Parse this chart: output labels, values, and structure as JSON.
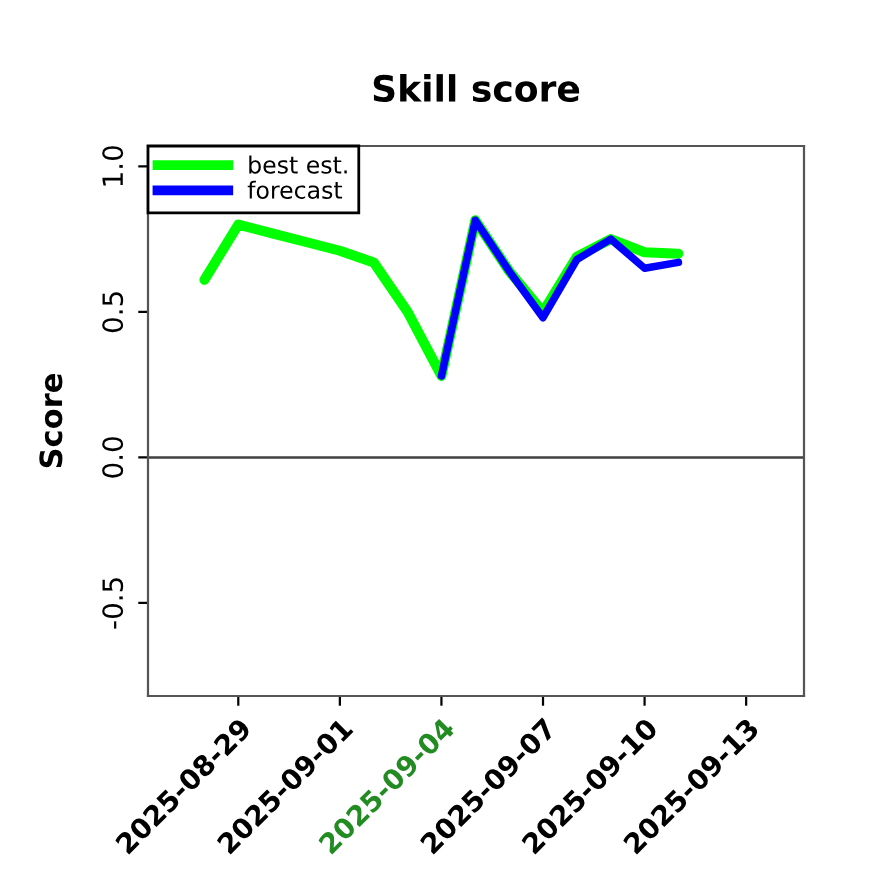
{
  "chart_data": {
    "type": "line",
    "title": "Skill score",
    "ylabel": "Score",
    "series": [
      {
        "name": "best est.",
        "color": "#00ff00",
        "x": [
          "2025-08-28",
          "2025-08-29",
          "2025-08-30",
          "2025-08-31",
          "2025-09-01",
          "2025-09-02",
          "2025-09-03",
          "2025-09-04",
          "2025-09-05",
          "2025-09-06",
          "2025-09-07",
          "2025-09-08",
          "2025-09-09",
          "2025-09-10",
          "2025-09-11"
        ],
        "values": [
          0.61,
          0.8,
          0.77,
          0.74,
          0.71,
          0.67,
          0.5,
          0.28,
          0.815,
          0.64,
          0.5,
          0.69,
          0.75,
          0.705,
          0.7
        ]
      },
      {
        "name": "forecast",
        "color": "#0000ff",
        "x": [
          "2025-09-04",
          "2025-09-05",
          "2025-09-06",
          "2025-09-07",
          "2025-09-08",
          "2025-09-09",
          "2025-09-10",
          "2025-09-11"
        ],
        "values": [
          0.28,
          0.815,
          0.64,
          0.48,
          0.68,
          0.75,
          0.65,
          0.67
        ]
      }
    ],
    "xlim": [
      "2025-08-26T08:00",
      "2025-09-14T17:00"
    ],
    "xticks": [
      {
        "value": "2025-08-29",
        "label": "2025-08-29"
      },
      {
        "value": "2025-09-01",
        "label": "2025-09-01"
      },
      {
        "value": "2025-09-04",
        "label": "2025-09-04"
      },
      {
        "value": "2025-09-07",
        "label": "2025-09-07"
      },
      {
        "value": "2025-09-10",
        "label": "2025-09-10"
      },
      {
        "value": "2025-09-13",
        "label": "2025-09-13"
      }
    ],
    "ylim": [
      -0.82,
      1.07
    ],
    "yticks": [
      -0.5,
      {
        "value": 0,
        "label": "0.0"
      },
      0.5,
      {
        "value": 1,
        "label": "1.0"
      }
    ],
    "ref_lines": [
      {
        "axis": "y",
        "value": 0,
        "color": "#404040"
      }
    ],
    "legend": "top left",
    "grid": false,
    "marker": "none",
    "line_style": "solid"
  }
}
